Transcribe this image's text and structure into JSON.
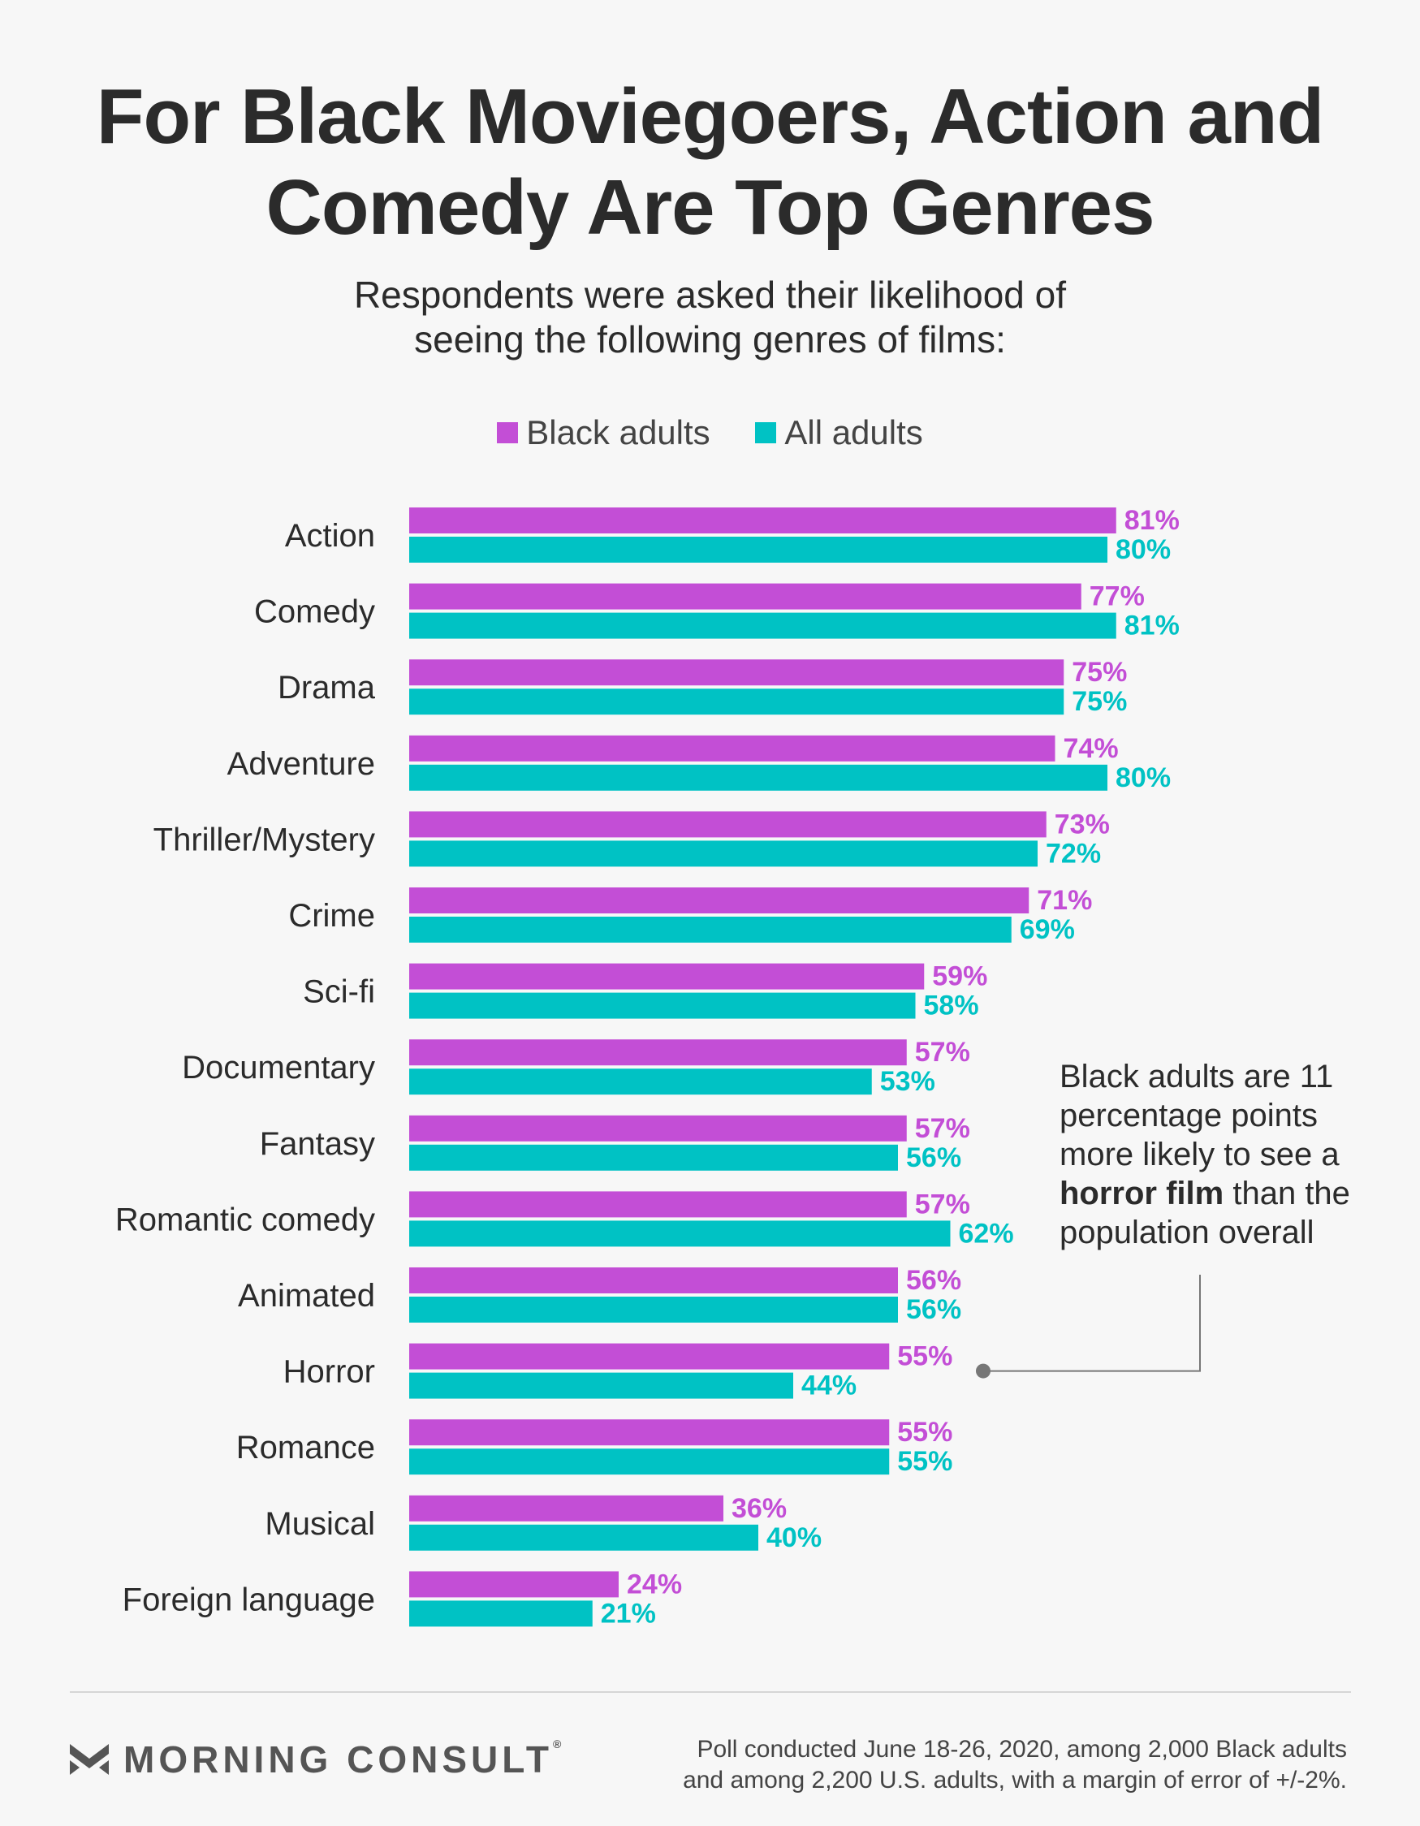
{
  "title_lines": [
    "For Black Moviegoers, Action and",
    "Comedy Are Top Genres"
  ],
  "subtitle_lines": [
    "Respondents were asked their likelihood of",
    "seeing the following genres of films:"
  ],
  "legend": {
    "black": {
      "label": "Black adults",
      "color": "#c34ed6"
    },
    "all": {
      "label": "All adults",
      "color": "#00c2c4"
    }
  },
  "chart_data": {
    "type": "bar",
    "orientation": "horizontal",
    "title": "For Black Moviegoers, Action and Comedy Are Top Genres",
    "categories": [
      "Action",
      "Comedy",
      "Drama",
      "Adventure",
      "Thriller/Mystery",
      "Crime",
      "Sci-fi",
      "Documentary",
      "Fantasy",
      "Romantic comedy",
      "Animated",
      "Horror",
      "Romance",
      "Musical",
      "Foreign language"
    ],
    "series": [
      {
        "name": "Black adults",
        "color": "#c34ed6",
        "values": [
          81,
          77,
          75,
          74,
          73,
          71,
          59,
          57,
          57,
          57,
          56,
          55,
          55,
          36,
          24
        ]
      },
      {
        "name": "All adults",
        "color": "#00c2c4",
        "values": [
          80,
          81,
          75,
          80,
          72,
          69,
          58,
          53,
          56,
          62,
          56,
          44,
          55,
          40,
          21
        ]
      }
    ],
    "value_suffix": "%",
    "xlim": [
      0,
      100
    ],
    "legend_position": "top-center"
  },
  "annotation": {
    "before": "Black adults are 11 percentage points more likely to see a ",
    "bold": "horror film",
    "after": " than the population overall",
    "target_category": "Horror"
  },
  "brand": {
    "name": "MORNING CONSULT",
    "mark": "®"
  },
  "footnote_lines": [
    "Poll conducted June 18-26, 2020, among 2,000 Black adults",
    "and among 2,200 U.S. adults, with a margin of error of +/-2%."
  ]
}
